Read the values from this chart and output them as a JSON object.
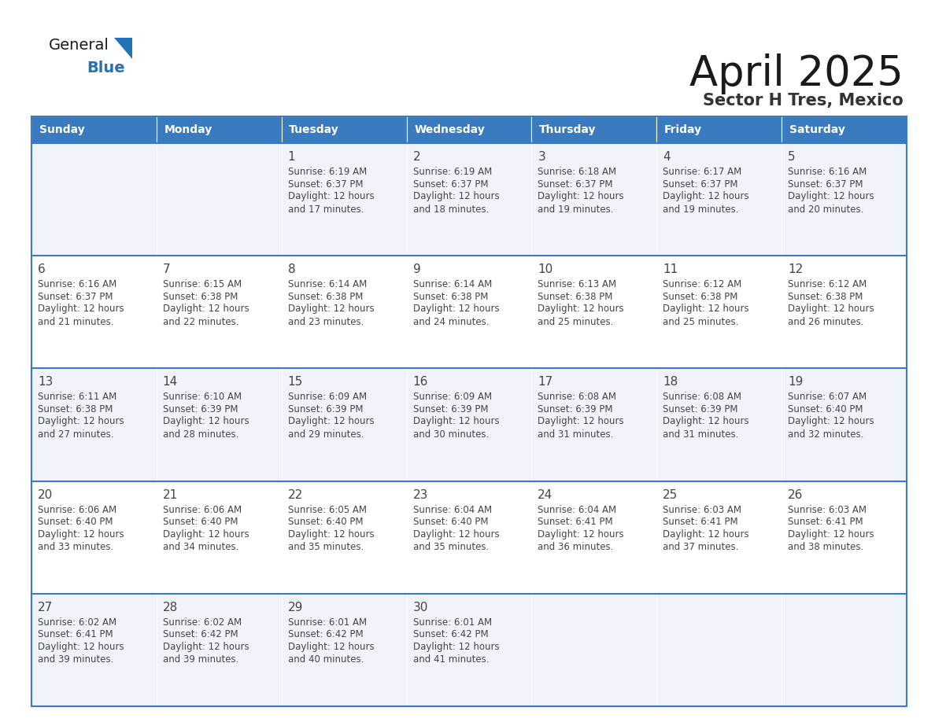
{
  "title": "April 2025",
  "subtitle": "Sector H Tres, Mexico",
  "header_bg_color": "#3a7abf",
  "header_text_color": "#ffffff",
  "weekdays": [
    "Sunday",
    "Monday",
    "Tuesday",
    "Wednesday",
    "Thursday",
    "Friday",
    "Saturday"
  ],
  "days": [
    {
      "col": 0,
      "row": 0,
      "num": "",
      "sunrise": "",
      "sunset": "",
      "daylight": ""
    },
    {
      "col": 1,
      "row": 0,
      "num": "",
      "sunrise": "",
      "sunset": "",
      "daylight": ""
    },
    {
      "col": 2,
      "row": 0,
      "num": "1",
      "sunrise": "6:19 AM",
      "sunset": "6:37 PM",
      "daylight": "12 hours\nand 17 minutes."
    },
    {
      "col": 3,
      "row": 0,
      "num": "2",
      "sunrise": "6:19 AM",
      "sunset": "6:37 PM",
      "daylight": "12 hours\nand 18 minutes."
    },
    {
      "col": 4,
      "row": 0,
      "num": "3",
      "sunrise": "6:18 AM",
      "sunset": "6:37 PM",
      "daylight": "12 hours\nand 19 minutes."
    },
    {
      "col": 5,
      "row": 0,
      "num": "4",
      "sunrise": "6:17 AM",
      "sunset": "6:37 PM",
      "daylight": "12 hours\nand 19 minutes."
    },
    {
      "col": 6,
      "row": 0,
      "num": "5",
      "sunrise": "6:16 AM",
      "sunset": "6:37 PM",
      "daylight": "12 hours\nand 20 minutes."
    },
    {
      "col": 0,
      "row": 1,
      "num": "6",
      "sunrise": "6:16 AM",
      "sunset": "6:37 PM",
      "daylight": "12 hours\nand 21 minutes."
    },
    {
      "col": 1,
      "row": 1,
      "num": "7",
      "sunrise": "6:15 AM",
      "sunset": "6:38 PM",
      "daylight": "12 hours\nand 22 minutes."
    },
    {
      "col": 2,
      "row": 1,
      "num": "8",
      "sunrise": "6:14 AM",
      "sunset": "6:38 PM",
      "daylight": "12 hours\nand 23 minutes."
    },
    {
      "col": 3,
      "row": 1,
      "num": "9",
      "sunrise": "6:14 AM",
      "sunset": "6:38 PM",
      "daylight": "12 hours\nand 24 minutes."
    },
    {
      "col": 4,
      "row": 1,
      "num": "10",
      "sunrise": "6:13 AM",
      "sunset": "6:38 PM",
      "daylight": "12 hours\nand 25 minutes."
    },
    {
      "col": 5,
      "row": 1,
      "num": "11",
      "sunrise": "6:12 AM",
      "sunset": "6:38 PM",
      "daylight": "12 hours\nand 25 minutes."
    },
    {
      "col": 6,
      "row": 1,
      "num": "12",
      "sunrise": "6:12 AM",
      "sunset": "6:38 PM",
      "daylight": "12 hours\nand 26 minutes."
    },
    {
      "col": 0,
      "row": 2,
      "num": "13",
      "sunrise": "6:11 AM",
      "sunset": "6:38 PM",
      "daylight": "12 hours\nand 27 minutes."
    },
    {
      "col": 1,
      "row": 2,
      "num": "14",
      "sunrise": "6:10 AM",
      "sunset": "6:39 PM",
      "daylight": "12 hours\nand 28 minutes."
    },
    {
      "col": 2,
      "row": 2,
      "num": "15",
      "sunrise": "6:09 AM",
      "sunset": "6:39 PM",
      "daylight": "12 hours\nand 29 minutes."
    },
    {
      "col": 3,
      "row": 2,
      "num": "16",
      "sunrise": "6:09 AM",
      "sunset": "6:39 PM",
      "daylight": "12 hours\nand 30 minutes."
    },
    {
      "col": 4,
      "row": 2,
      "num": "17",
      "sunrise": "6:08 AM",
      "sunset": "6:39 PM",
      "daylight": "12 hours\nand 31 minutes."
    },
    {
      "col": 5,
      "row": 2,
      "num": "18",
      "sunrise": "6:08 AM",
      "sunset": "6:39 PM",
      "daylight": "12 hours\nand 31 minutes."
    },
    {
      "col": 6,
      "row": 2,
      "num": "19",
      "sunrise": "6:07 AM",
      "sunset": "6:40 PM",
      "daylight": "12 hours\nand 32 minutes."
    },
    {
      "col": 0,
      "row": 3,
      "num": "20",
      "sunrise": "6:06 AM",
      "sunset": "6:40 PM",
      "daylight": "12 hours\nand 33 minutes."
    },
    {
      "col": 1,
      "row": 3,
      "num": "21",
      "sunrise": "6:06 AM",
      "sunset": "6:40 PM",
      "daylight": "12 hours\nand 34 minutes."
    },
    {
      "col": 2,
      "row": 3,
      "num": "22",
      "sunrise": "6:05 AM",
      "sunset": "6:40 PM",
      "daylight": "12 hours\nand 35 minutes."
    },
    {
      "col": 3,
      "row": 3,
      "num": "23",
      "sunrise": "6:04 AM",
      "sunset": "6:40 PM",
      "daylight": "12 hours\nand 35 minutes."
    },
    {
      "col": 4,
      "row": 3,
      "num": "24",
      "sunrise": "6:04 AM",
      "sunset": "6:41 PM",
      "daylight": "12 hours\nand 36 minutes."
    },
    {
      "col": 5,
      "row": 3,
      "num": "25",
      "sunrise": "6:03 AM",
      "sunset": "6:41 PM",
      "daylight": "12 hours\nand 37 minutes."
    },
    {
      "col": 6,
      "row": 3,
      "num": "26",
      "sunrise": "6:03 AM",
      "sunset": "6:41 PM",
      "daylight": "12 hours\nand 38 minutes."
    },
    {
      "col": 0,
      "row": 4,
      "num": "27",
      "sunrise": "6:02 AM",
      "sunset": "6:41 PM",
      "daylight": "12 hours\nand 39 minutes."
    },
    {
      "col": 1,
      "row": 4,
      "num": "28",
      "sunrise": "6:02 AM",
      "sunset": "6:42 PM",
      "daylight": "12 hours\nand 39 minutes."
    },
    {
      "col": 2,
      "row": 4,
      "num": "29",
      "sunrise": "6:01 AM",
      "sunset": "6:42 PM",
      "daylight": "12 hours\nand 40 minutes."
    },
    {
      "col": 3,
      "row": 4,
      "num": "30",
      "sunrise": "6:01 AM",
      "sunset": "6:42 PM",
      "daylight": "12 hours\nand 41 minutes."
    },
    {
      "col": 4,
      "row": 4,
      "num": "",
      "sunrise": "",
      "sunset": "",
      "daylight": ""
    },
    {
      "col": 5,
      "row": 4,
      "num": "",
      "sunrise": "",
      "sunset": "",
      "daylight": ""
    },
    {
      "col": 6,
      "row": 4,
      "num": "",
      "sunrise": "",
      "sunset": "",
      "daylight": ""
    }
  ],
  "logo_triangle_color": "#2472b8",
  "text_color": "#444444",
  "border_color": "#3a7abf",
  "cell_bg_colors": [
    "#f0f4fa",
    "#ffffff"
  ]
}
